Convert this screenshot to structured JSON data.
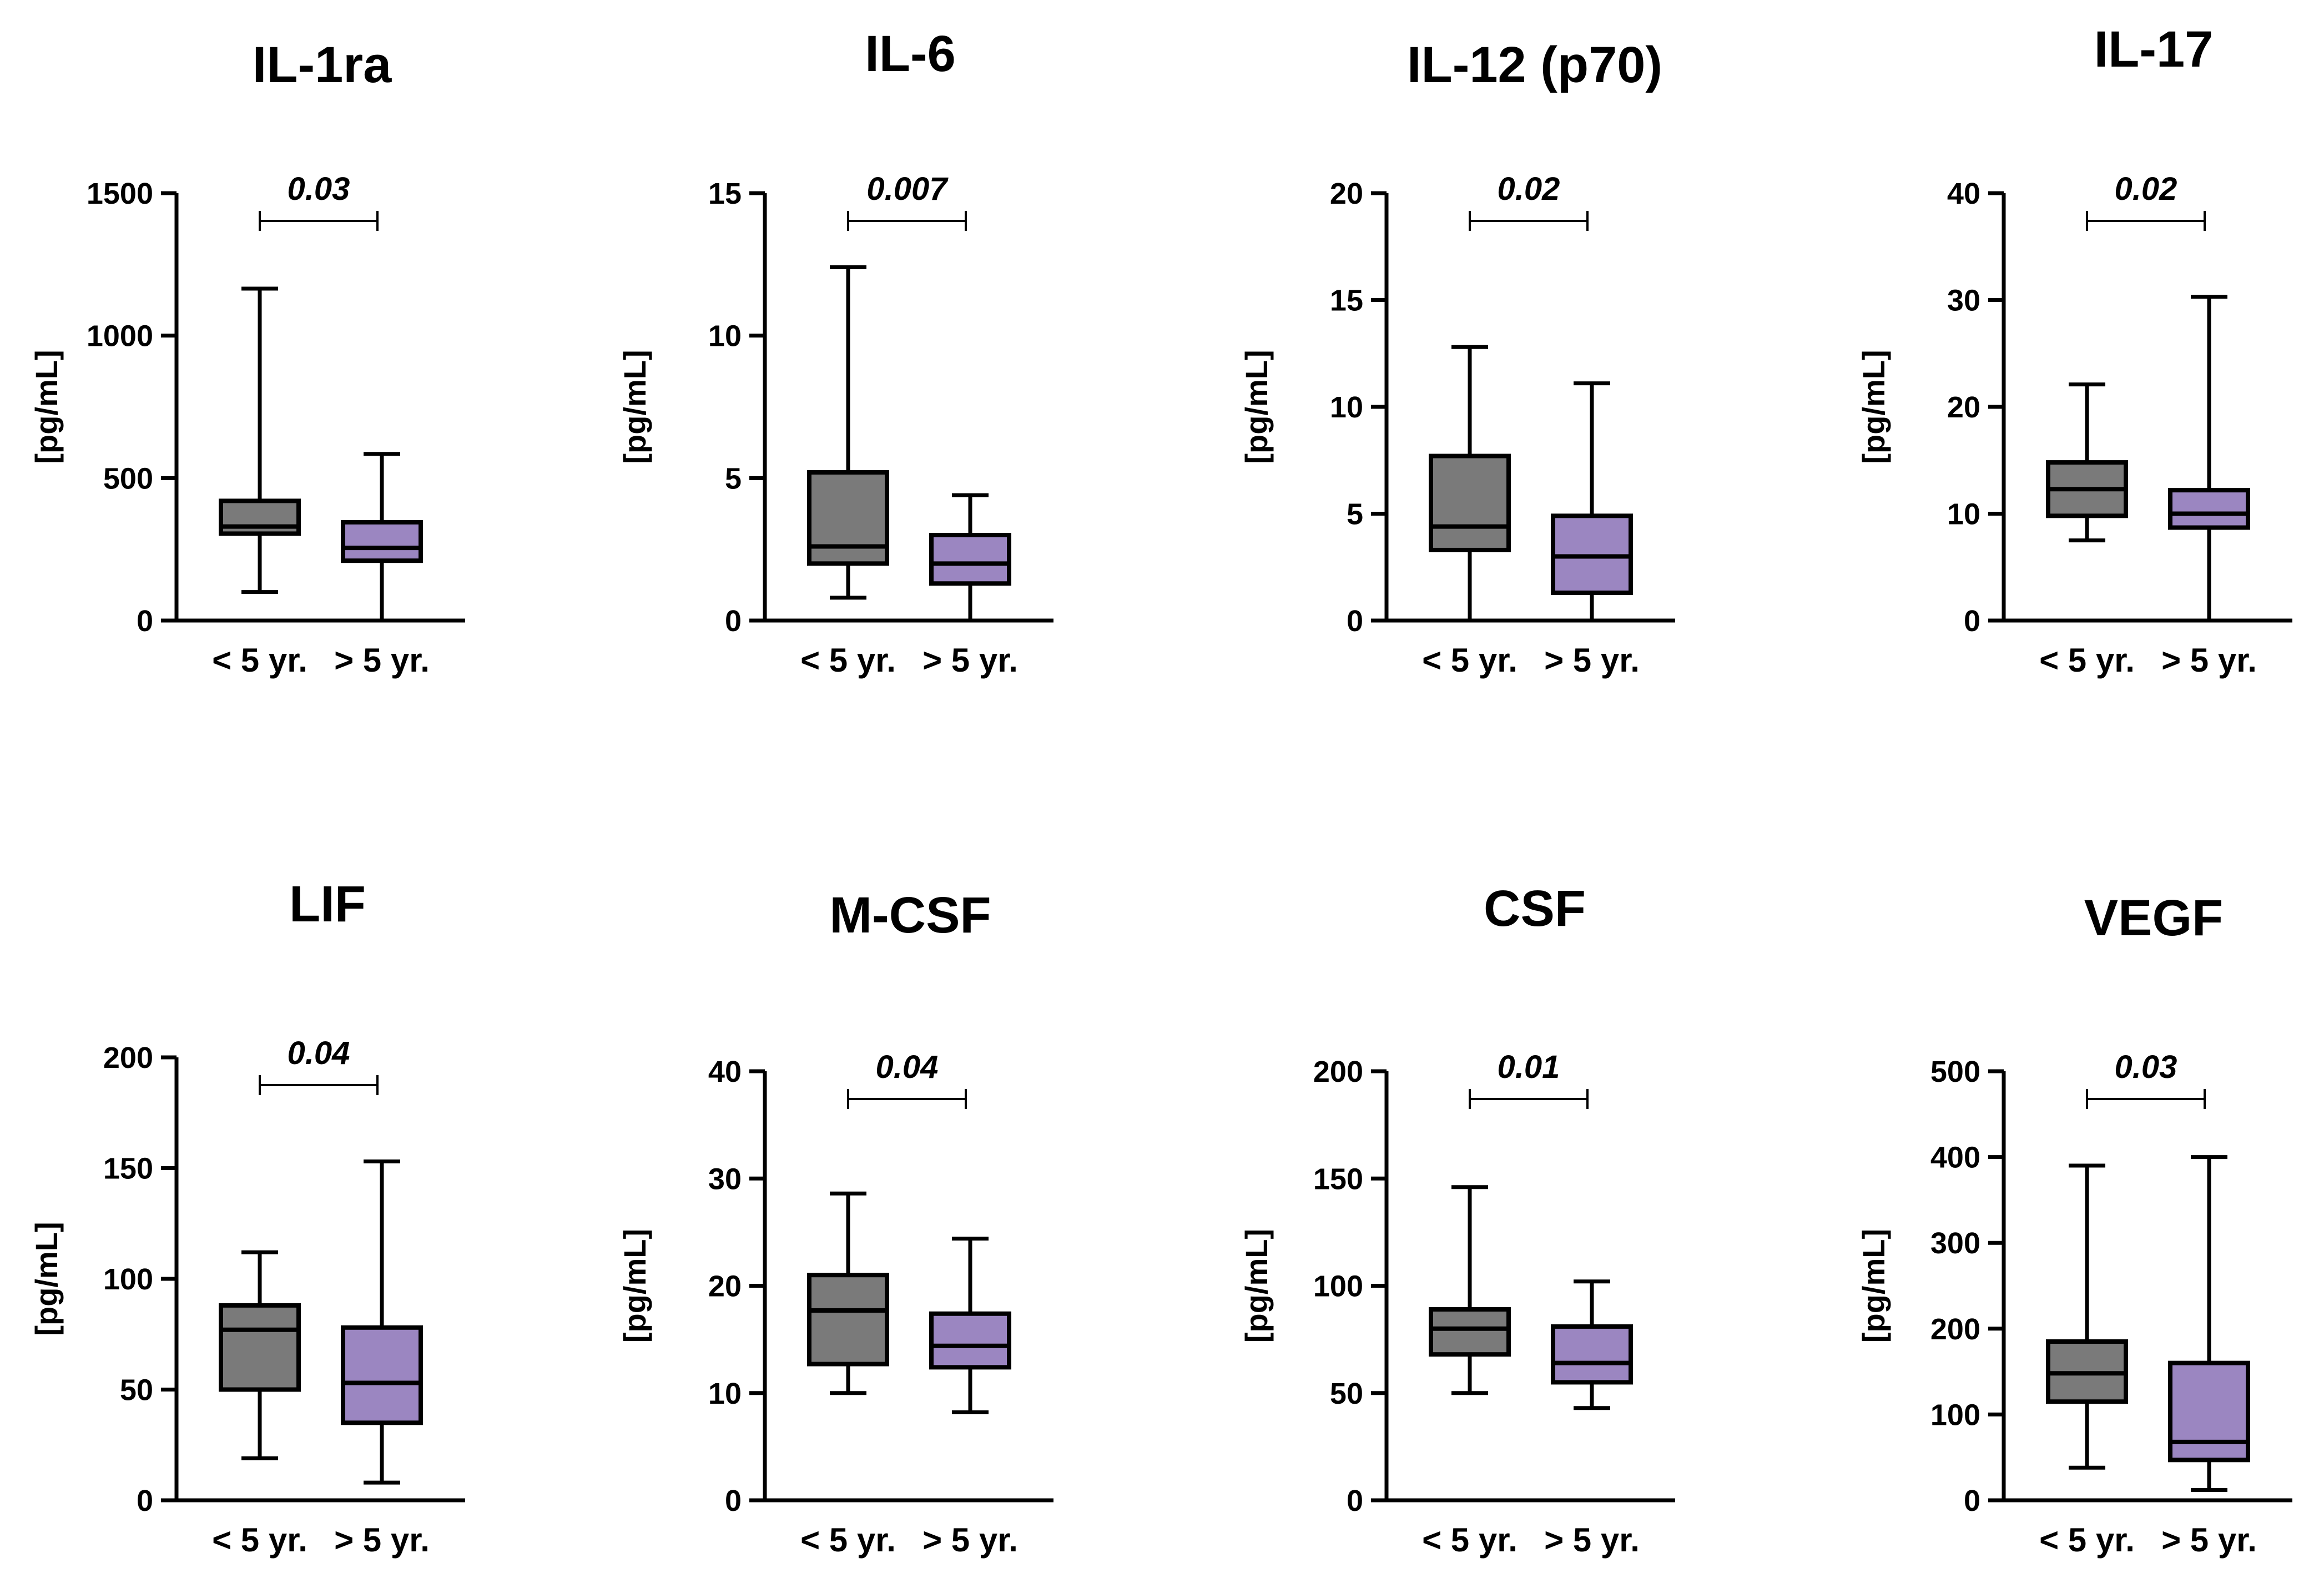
{
  "chart_data": [
    {
      "type": "box",
      "title": "IL-1ra",
      "ylabel": "[pg/mL]",
      "ylim": [
        0,
        1500
      ],
      "yticks": [
        0,
        500,
        1000,
        1500
      ],
      "categories": [
        "< 5 yr.",
        "> 5 yr."
      ],
      "p_value": "0.03",
      "boxes": [
        {
          "category": "< 5 yr.",
          "min": 100,
          "q1": 305,
          "median": 330,
          "q3": 420,
          "max": 1165
        },
        {
          "category": "> 5 yr.",
          "min": 0,
          "q1": 210,
          "median": 255,
          "q3": 345,
          "max": 585
        }
      ]
    },
    {
      "type": "box",
      "title": "IL-6",
      "ylabel": "[pg/mL]",
      "ylim": [
        0,
        15
      ],
      "yticks": [
        0,
        5,
        10,
        15
      ],
      "categories": [
        "< 5 yr.",
        "> 5 yr."
      ],
      "p_value": "0.007",
      "boxes": [
        {
          "category": "< 5 yr.",
          "min": 0.8,
          "q1": 2.0,
          "median": 2.6,
          "q3": 5.2,
          "max": 12.4
        },
        {
          "category": "> 5 yr.",
          "min": 0,
          "q1": 1.3,
          "median": 2.0,
          "q3": 3.0,
          "max": 4.4
        }
      ]
    },
    {
      "type": "box",
      "title": "IL-12 (p70)",
      "ylabel": "[pg/mL]",
      "ylim": [
        0,
        20
      ],
      "yticks": [
        0,
        5,
        10,
        15,
        20
      ],
      "categories": [
        "< 5 yr.",
        "> 5 yr."
      ],
      "p_value": "0.02",
      "boxes": [
        {
          "category": "< 5 yr.",
          "min": 0,
          "q1": 3.3,
          "median": 4.4,
          "q3": 7.7,
          "max": 12.8
        },
        {
          "category": "> 5 yr.",
          "min": 0,
          "q1": 1.3,
          "median": 3.0,
          "q3": 4.9,
          "max": 11.1
        }
      ]
    },
    {
      "type": "box",
      "title": "IL-17",
      "ylabel": "[pg/mL]",
      "ylim": [
        0,
        40
      ],
      "yticks": [
        0,
        10,
        20,
        30,
        40
      ],
      "categories": [
        "< 5 yr.",
        "> 5 yr."
      ],
      "p_value": "0.02",
      "boxes": [
        {
          "category": "< 5 yr.",
          "min": 7.5,
          "q1": 9.8,
          "median": 12.3,
          "q3": 14.8,
          "max": 22.1
        },
        {
          "category": "> 5 yr.",
          "min": 0,
          "q1": 8.7,
          "median": 10.0,
          "q3": 12.2,
          "max": 30.3
        }
      ]
    },
    {
      "type": "box",
      "title": "LIF",
      "ylabel": "[pg/mL]",
      "ylim": [
        0,
        200
      ],
      "yticks": [
        0,
        50,
        100,
        150,
        200
      ],
      "categories": [
        "< 5 yr.",
        "> 5 yr."
      ],
      "p_value": "0.04",
      "boxes": [
        {
          "category": "< 5 yr.",
          "min": 19,
          "q1": 50,
          "median": 77,
          "q3": 88,
          "max": 112
        },
        {
          "category": "> 5 yr.",
          "min": 8,
          "q1": 35,
          "median": 53,
          "q3": 78,
          "max": 153
        }
      ]
    },
    {
      "type": "box",
      "title": "M-CSF",
      "ylabel": "[pg/mL]",
      "ylim": [
        0,
        40
      ],
      "yticks": [
        0,
        10,
        20,
        30,
        40
      ],
      "categories": [
        "< 5 yr.",
        "> 5 yr."
      ],
      "p_value": "0.04",
      "boxes": [
        {
          "category": "< 5 yr.",
          "min": 10,
          "q1": 12.7,
          "median": 17.7,
          "q3": 21.0,
          "max": 28.6
        },
        {
          "category": "> 5 yr.",
          "min": 8.2,
          "q1": 12.4,
          "median": 14.4,
          "q3": 17.4,
          "max": 24.4
        }
      ]
    },
    {
      "type": "box",
      "title": "CSF",
      "ylabel": "[pg/mL]",
      "ylim": [
        0,
        200
      ],
      "yticks": [
        0,
        50,
        100,
        150,
        200
      ],
      "categories": [
        "< 5 yr.",
        "> 5 yr."
      ],
      "p_value": "0.01",
      "boxes": [
        {
          "category": "< 5 yr.",
          "min": 50,
          "q1": 68,
          "median": 80,
          "q3": 89,
          "max": 146
        },
        {
          "category": "> 5 yr.",
          "min": 43,
          "q1": 55,
          "median": 64,
          "q3": 81,
          "max": 102
        }
      ]
    },
    {
      "type": "box",
      "title": "VEGF",
      "ylabel": "[pg/mL]",
      "ylim": [
        0,
        500
      ],
      "yticks": [
        0,
        100,
        200,
        300,
        400,
        500
      ],
      "categories": [
        "< 5 yr.",
        "> 5 yr."
      ],
      "p_value": "0.03",
      "boxes": [
        {
          "category": "< 5 yr.",
          "min": 38,
          "q1": 115,
          "median": 148,
          "q3": 185,
          "max": 390
        },
        {
          "category": "> 5 yr.",
          "min": 12,
          "q1": 47,
          "median": 68,
          "q3": 160,
          "max": 400
        }
      ]
    }
  ],
  "colors": {
    "group1": "#7a7a7a",
    "group2": "#9b86c1",
    "stroke": "#000000"
  }
}
